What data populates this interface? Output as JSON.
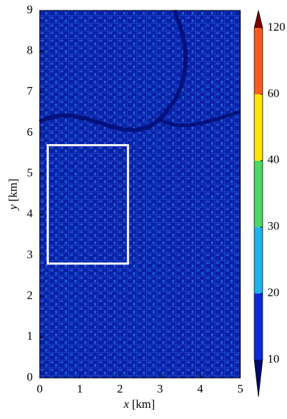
{
  "chart_data": {
    "type": "heatmap",
    "xlabel": {
      "symbol": "x",
      "unit": "[km]"
    },
    "ylabel": {
      "symbol": "y",
      "unit": "[km]"
    },
    "xlim": [
      0,
      5
    ],
    "xticks": [
      0,
      1,
      2,
      3,
      4,
      5
    ],
    "ylim": [
      0,
      9
    ],
    "yticks": [
      0,
      1,
      2,
      3,
      4,
      5,
      6,
      7,
      8,
      9
    ],
    "background_color": "#0a1fa8",
    "highlight": {
      "x": [
        0.2,
        2.2
      ],
      "y": [
        2.8,
        5.7
      ],
      "color": "#ffffff"
    },
    "colorbar": {
      "ticks": [
        10,
        20,
        30,
        40,
        60,
        120
      ],
      "colors": [
        "#0a2bd6",
        "#1fb4ef",
        "#4cd964",
        "#ffe600",
        "#ff5a1f"
      ],
      "under_color": "#000a6e",
      "over_color": "#7a0000"
    }
  }
}
